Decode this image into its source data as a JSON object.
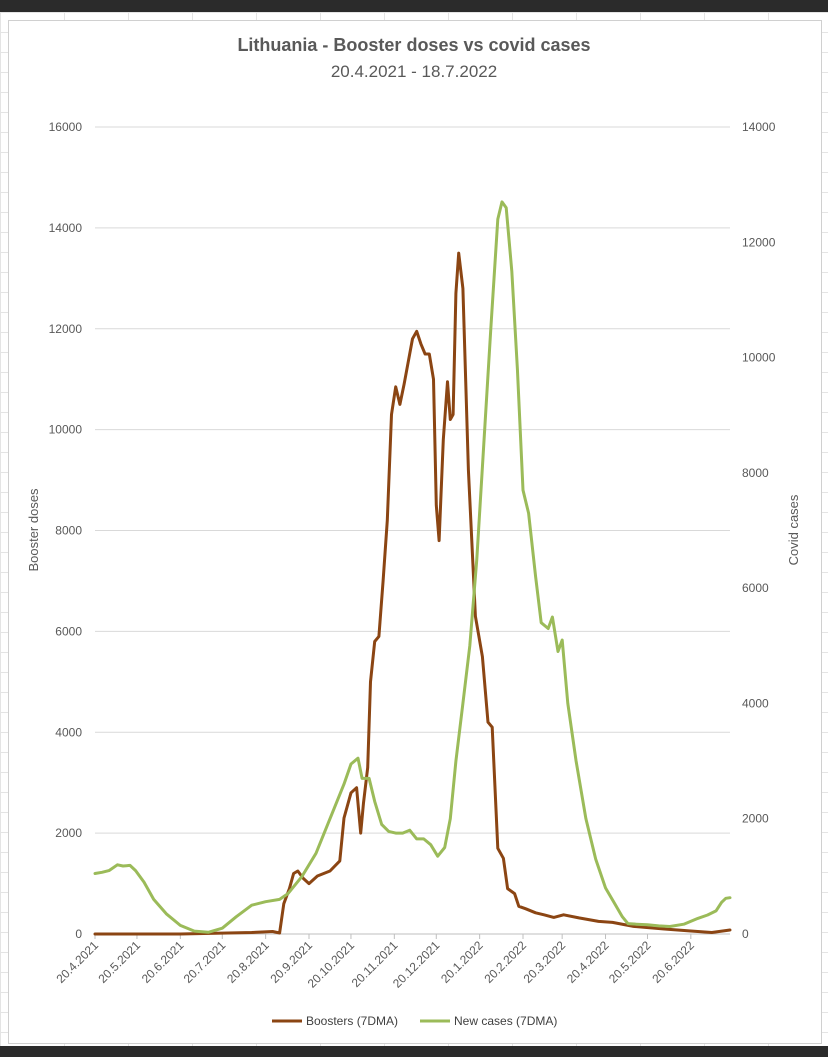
{
  "chart_data": {
    "type": "line",
    "title": "Lithuania - Booster doses vs covid cases",
    "subtitle": "20.4.2021 - 18.7.2022",
    "ylabel": "Booster doses",
    "y2label": "Covid cases",
    "ylim": [
      0,
      16000
    ],
    "y2lim": [
      0,
      14000
    ],
    "xlim": [
      "2021-04-20",
      "2022-07-18"
    ],
    "y_ticks": [
      "0",
      "2000",
      "4000",
      "6000",
      "8000",
      "10000",
      "12000",
      "14000",
      "16000"
    ],
    "y2_ticks": [
      "0",
      "2000",
      "4000",
      "6000",
      "8000",
      "10000",
      "12000",
      "14000"
    ],
    "x_tick_labels": [
      "20.4.2021",
      "20.5.2021",
      "20.6.2021",
      "20.7.2021",
      "20.8.2021",
      "20.9.2021",
      "20.10.2021",
      "20.11.2021",
      "20.12.2021",
      "20.1.2022",
      "20.2.2022",
      "20.3.2022",
      "20.4.2022",
      "20.5.2022",
      "20.6.2022"
    ],
    "legend_position": "bottom",
    "grid": true,
    "series": [
      {
        "name": "Boosters (7DMA)",
        "axis": "left",
        "color": "#8B4513",
        "points": [
          [
            "2021-04-20",
            0
          ],
          [
            "2021-06-20",
            0
          ],
          [
            "2021-08-10",
            30
          ],
          [
            "2021-08-25",
            50
          ],
          [
            "2021-08-30",
            20
          ],
          [
            "2021-09-02",
            600
          ],
          [
            "2021-09-06",
            900
          ],
          [
            "2021-09-09",
            1200
          ],
          [
            "2021-09-12",
            1250
          ],
          [
            "2021-09-16",
            1100
          ],
          [
            "2021-09-20",
            1000
          ],
          [
            "2021-09-26",
            1150
          ],
          [
            "2021-10-05",
            1250
          ],
          [
            "2021-10-12",
            1450
          ],
          [
            "2021-10-15",
            2300
          ],
          [
            "2021-10-20",
            2800
          ],
          [
            "2021-10-24",
            2900
          ],
          [
            "2021-10-27",
            2000
          ],
          [
            "2021-10-29",
            2600
          ],
          [
            "2021-11-01",
            3300
          ],
          [
            "2021-11-03",
            5000
          ],
          [
            "2021-11-06",
            5800
          ],
          [
            "2021-11-09",
            5900
          ],
          [
            "2021-11-12",
            7000
          ],
          [
            "2021-11-15",
            8200
          ],
          [
            "2021-11-18",
            10300
          ],
          [
            "2021-11-21",
            10850
          ],
          [
            "2021-11-24",
            10500
          ],
          [
            "2021-11-27",
            10900
          ],
          [
            "2021-11-30",
            11350
          ],
          [
            "2021-12-03",
            11800
          ],
          [
            "2021-12-06",
            11950
          ],
          [
            "2021-12-09",
            11700
          ],
          [
            "2021-12-12",
            11500
          ],
          [
            "2021-12-15",
            11500
          ],
          [
            "2021-12-18",
            11000
          ],
          [
            "2021-12-20",
            8500
          ],
          [
            "2021-12-22",
            7800
          ],
          [
            "2021-12-25",
            9800
          ],
          [
            "2021-12-28",
            10950
          ],
          [
            "2021-12-30",
            10200
          ],
          [
            "2022-01-01",
            10300
          ],
          [
            "2022-01-03",
            12700
          ],
          [
            "2022-01-05",
            13500
          ],
          [
            "2022-01-08",
            12800
          ],
          [
            "2022-01-12",
            9200
          ],
          [
            "2022-01-17",
            6300
          ],
          [
            "2022-01-22",
            5500
          ],
          [
            "2022-01-26",
            4200
          ],
          [
            "2022-01-29",
            4100
          ],
          [
            "2022-02-02",
            1700
          ],
          [
            "2022-02-06",
            1500
          ],
          [
            "2022-02-09",
            900
          ],
          [
            "2022-02-14",
            800
          ],
          [
            "2022-02-17",
            550
          ],
          [
            "2022-02-22",
            500
          ],
          [
            "2022-03-01",
            420
          ],
          [
            "2022-03-07",
            380
          ],
          [
            "2022-03-14",
            330
          ],
          [
            "2022-03-21",
            380
          ],
          [
            "2022-04-01",
            320
          ],
          [
            "2022-04-15",
            250
          ],
          [
            "2022-04-25",
            230
          ],
          [
            "2022-05-10",
            150
          ],
          [
            "2022-06-01",
            100
          ],
          [
            "2022-06-20",
            60
          ],
          [
            "2022-07-05",
            30
          ],
          [
            "2022-07-18",
            80
          ]
        ]
      },
      {
        "name": "New cases (7DMA)",
        "axis": "right",
        "color": "#9BBB59",
        "points": [
          [
            "2021-04-20",
            1050
          ],
          [
            "2021-04-25",
            1070
          ],
          [
            "2021-04-30",
            1100
          ],
          [
            "2021-05-06",
            1200
          ],
          [
            "2021-05-10",
            1180
          ],
          [
            "2021-05-15",
            1190
          ],
          [
            "2021-05-19",
            1100
          ],
          [
            "2021-05-25",
            900
          ],
          [
            "2021-06-01",
            600
          ],
          [
            "2021-06-10",
            350
          ],
          [
            "2021-06-20",
            150
          ],
          [
            "2021-06-30",
            50
          ],
          [
            "2021-07-10",
            30
          ],
          [
            "2021-07-20",
            100
          ],
          [
            "2021-07-30",
            300
          ],
          [
            "2021-08-10",
            500
          ],
          [
            "2021-08-20",
            560
          ],
          [
            "2021-08-30",
            600
          ],
          [
            "2021-09-05",
            700
          ],
          [
            "2021-09-15",
            1000
          ],
          [
            "2021-09-25",
            1400
          ],
          [
            "2021-10-05",
            2000
          ],
          [
            "2021-10-15",
            2600
          ],
          [
            "2021-10-20",
            2950
          ],
          [
            "2021-10-25",
            3050
          ],
          [
            "2021-10-28",
            2700
          ],
          [
            "2021-11-02",
            2700
          ],
          [
            "2021-11-06",
            2300
          ],
          [
            "2021-11-11",
            1900
          ],
          [
            "2021-11-16",
            1780
          ],
          [
            "2021-11-21",
            1750
          ],
          [
            "2021-11-26",
            1750
          ],
          [
            "2021-12-01",
            1800
          ],
          [
            "2021-12-06",
            1650
          ],
          [
            "2021-12-11",
            1650
          ],
          [
            "2021-12-16",
            1550
          ],
          [
            "2021-12-21",
            1350
          ],
          [
            "2021-12-26",
            1500
          ],
          [
            "2021-12-30",
            2000
          ],
          [
            "2022-01-03",
            3000
          ],
          [
            "2022-01-08",
            4000
          ],
          [
            "2022-01-13",
            5000
          ],
          [
            "2022-01-18",
            6500
          ],
          [
            "2022-01-23",
            8500
          ],
          [
            "2022-01-28",
            10500
          ],
          [
            "2022-02-02",
            12400
          ],
          [
            "2022-02-05",
            12700
          ],
          [
            "2022-02-08",
            12600
          ],
          [
            "2022-02-12",
            11500
          ],
          [
            "2022-02-16",
            9800
          ],
          [
            "2022-02-20",
            7700
          ],
          [
            "2022-02-24",
            7300
          ],
          [
            "2022-03-01",
            6200
          ],
          [
            "2022-03-05",
            5400
          ],
          [
            "2022-03-10",
            5300
          ],
          [
            "2022-03-13",
            5500
          ],
          [
            "2022-03-17",
            4900
          ],
          [
            "2022-03-20",
            5100
          ],
          [
            "2022-03-24",
            4000
          ],
          [
            "2022-03-30",
            3000
          ],
          [
            "2022-04-06",
            2000
          ],
          [
            "2022-04-13",
            1300
          ],
          [
            "2022-04-20",
            800
          ],
          [
            "2022-04-26",
            550
          ],
          [
            "2022-05-02",
            300
          ],
          [
            "2022-05-06",
            180
          ],
          [
            "2022-05-12",
            170
          ],
          [
            "2022-05-20",
            160
          ],
          [
            "2022-05-28",
            140
          ],
          [
            "2022-06-05",
            130
          ],
          [
            "2022-06-15",
            170
          ],
          [
            "2022-06-25",
            270
          ],
          [
            "2022-07-02",
            330
          ],
          [
            "2022-07-08",
            400
          ],
          [
            "2022-07-12",
            550
          ],
          [
            "2022-07-15",
            620
          ],
          [
            "2022-07-18",
            630
          ]
        ]
      }
    ]
  }
}
